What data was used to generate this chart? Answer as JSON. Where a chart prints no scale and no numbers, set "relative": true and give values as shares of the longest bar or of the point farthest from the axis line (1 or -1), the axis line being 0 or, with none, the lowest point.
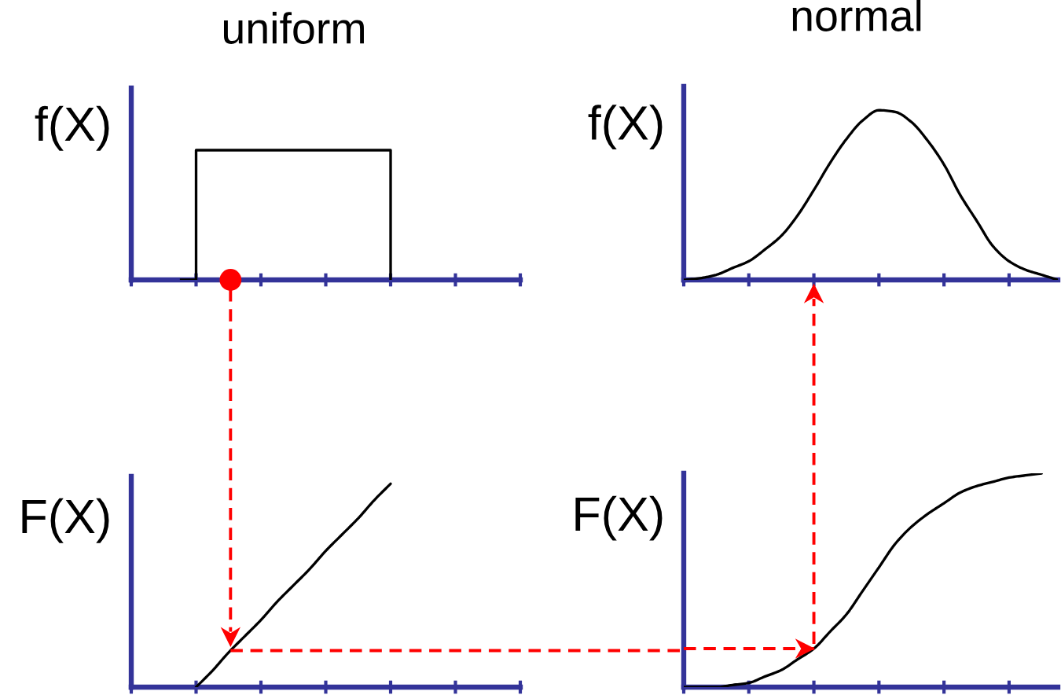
{
  "chart_data": [
    {
      "type": "step",
      "title": "uniform",
      "ylabel": "f(X)",
      "relative": true,
      "categories": [
        null,
        null,
        null,
        null,
        null,
        null,
        null,
        null,
        null,
        null,
        null,
        null,
        null,
        null,
        null,
        null,
        null,
        null,
        null,
        null,
        null,
        null,
        null,
        null,
        null
      ],
      "series": [
        {
          "color": "#000000",
          "values": [
            null,
            null,
            null,
            0,
            1,
            1,
            1,
            1,
            1,
            1,
            1,
            1,
            1,
            1,
            1,
            1,
            0,
            null,
            null,
            null,
            null,
            null,
            null,
            null,
            null
          ]
        }
      ]
    },
    {
      "type": "line",
      "title": "normal",
      "ylabel": "f(X)",
      "relative": true,
      "categories": [
        null,
        null,
        null,
        null,
        null,
        null,
        null,
        null,
        null,
        null,
        null,
        null,
        null,
        null,
        null,
        null,
        null,
        null,
        null,
        null,
        null,
        null,
        null,
        null
      ],
      "series": [
        {
          "color": "#000000",
          "values": [
            0,
            0.01,
            0.03,
            0.07,
            0.11,
            0.18,
            0.26,
            0.38,
            0.53,
            0.69,
            0.83,
            0.94,
            1,
            0.99,
            0.93,
            0.82,
            0.68,
            0.5,
            0.35,
            0.2,
            0.11,
            0.06,
            0.03,
            0
          ]
        }
      ]
    },
    {
      "type": "line",
      "ylabel": "F(X)",
      "relative": true,
      "categories": [
        null,
        null,
        null,
        null,
        null,
        null,
        null,
        null,
        null,
        null,
        null,
        null,
        null,
        null,
        null,
        null,
        null,
        null,
        null,
        null,
        null,
        null,
        null,
        null,
        null
      ],
      "series": [
        {
          "color": "#000000",
          "values": [
            null,
            null,
            null,
            null,
            0,
            0.08,
            0.17,
            0.25,
            0.33,
            0.42,
            0.5,
            0.58,
            0.67,
            0.75,
            0.83,
            0.92,
            1,
            null,
            null,
            null,
            null,
            null,
            null,
            null,
            null
          ]
        }
      ],
      "ref_lines": [
        {
          "axis": "y",
          "value": 0.18,
          "color": "#ff0000",
          "line_style": "dashed"
        }
      ]
    },
    {
      "type": "line",
      "ylabel": "F(X)",
      "relative": true,
      "categories": [
        null,
        null,
        null,
        null,
        null,
        null,
        null,
        null,
        null,
        null,
        null,
        null,
        null,
        null,
        null,
        null,
        null,
        null,
        null,
        null,
        null,
        null,
        null,
        null
      ],
      "series": [
        {
          "color": "#000000",
          "values": [
            0,
            0,
            0,
            0.01,
            0.02,
            0.05,
            0.08,
            0.13,
            0.18,
            0.26,
            0.34,
            0.45,
            0.56,
            0.67,
            0.75,
            0.81,
            0.86,
            0.91,
            0.94,
            0.96,
            0.98,
            0.99,
            1,
            null
          ]
        }
      ],
      "ref_lines": [
        {
          "axis": "y",
          "value": 0.18,
          "color": "#ff0000",
          "line_style": "dashed"
        }
      ]
    }
  ]
}
